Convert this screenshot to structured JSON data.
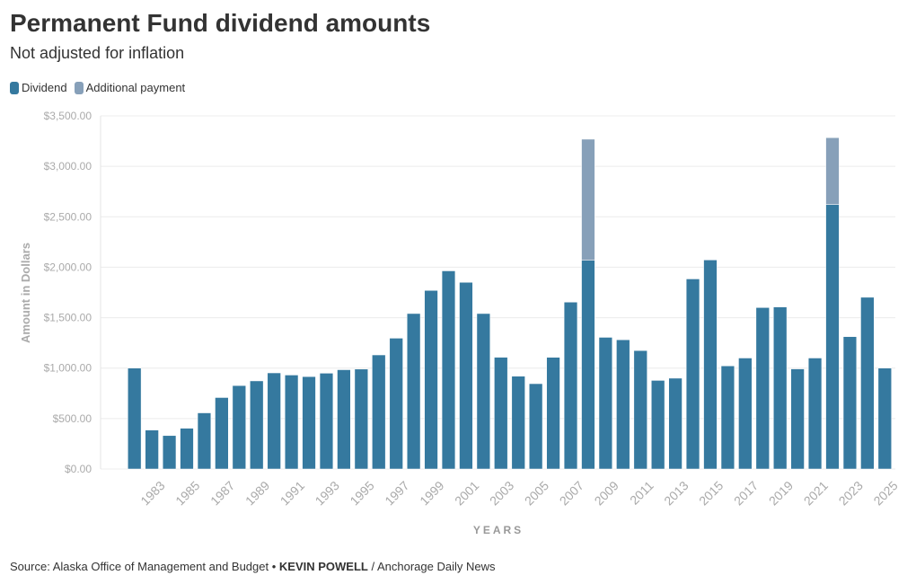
{
  "chart_data": {
    "type": "stacked-bar",
    "title": "Permanent Fund dividend amounts",
    "subtitle": "Not adjusted for inflation",
    "y_label": "Amount in Dollars",
    "x_label": "YEARS",
    "categories": [
      null,
      "1983",
      null,
      "1985",
      null,
      "1987",
      null,
      "1989",
      null,
      "1991",
      null,
      "1993",
      null,
      "1995",
      null,
      "1997",
      null,
      "1999",
      null,
      "2001",
      null,
      "2003",
      null,
      "2005",
      null,
      "2007",
      null,
      "2009",
      null,
      "2011",
      null,
      "2013",
      null,
      "2015",
      null,
      "2017",
      null,
      "2019",
      null,
      "2021",
      null,
      "2023",
      null,
      "2025"
    ],
    "series": [
      {
        "name": "Dividend",
        "color": "#35799f",
        "values": [
          1000,
          386.15,
          331.29,
          404,
          556.26,
          708.19,
          826.93,
          873.16,
          952.63,
          931.34,
          915.84,
          949.46,
          983.9,
          990.3,
          1130.68,
          1296.54,
          1540.88,
          1769.84,
          1963.86,
          1850.28,
          1540.76,
          1107.56,
          919.84,
          845.76,
          1106.96,
          1654,
          2069,
          1305,
          1281,
          1174,
          878,
          900,
          1884,
          2072,
          1022,
          1100,
          1600,
          1606,
          992,
          1100,
          2622,
          1312,
          1702,
          1000
        ]
      },
      {
        "name": "Additional payment",
        "color": "#87a0b9",
        "values": [
          null,
          null,
          null,
          null,
          null,
          null,
          null,
          null,
          null,
          null,
          null,
          null,
          null,
          null,
          null,
          null,
          null,
          null,
          null,
          null,
          null,
          null,
          null,
          null,
          null,
          null,
          1200,
          null,
          null,
          null,
          null,
          null,
          null,
          null,
          null,
          null,
          null,
          null,
          null,
          null,
          662,
          null,
          null,
          null
        ]
      }
    ],
    "ylim": [
      0,
      3500
    ],
    "yticks": [
      {
        "value": 0,
        "label": "$0.00"
      },
      {
        "value": 500,
        "label": "$500.00"
      },
      {
        "value": 1000,
        "label": "$1,000.00"
      },
      {
        "value": 1500,
        "label": "$1,500.00"
      },
      {
        "value": 2000,
        "label": "$2,000.00"
      },
      {
        "value": 2500,
        "label": "$2,500.00"
      },
      {
        "value": 3000,
        "label": "$3,000.00"
      },
      {
        "value": 3500,
        "label": "$3,500.00"
      }
    ],
    "grid": true,
    "source": "Source: Alaska Office of Management and Budget •",
    "author": "KEVIN POWELL",
    "publisher": "/ Anchorage Daily News"
  }
}
